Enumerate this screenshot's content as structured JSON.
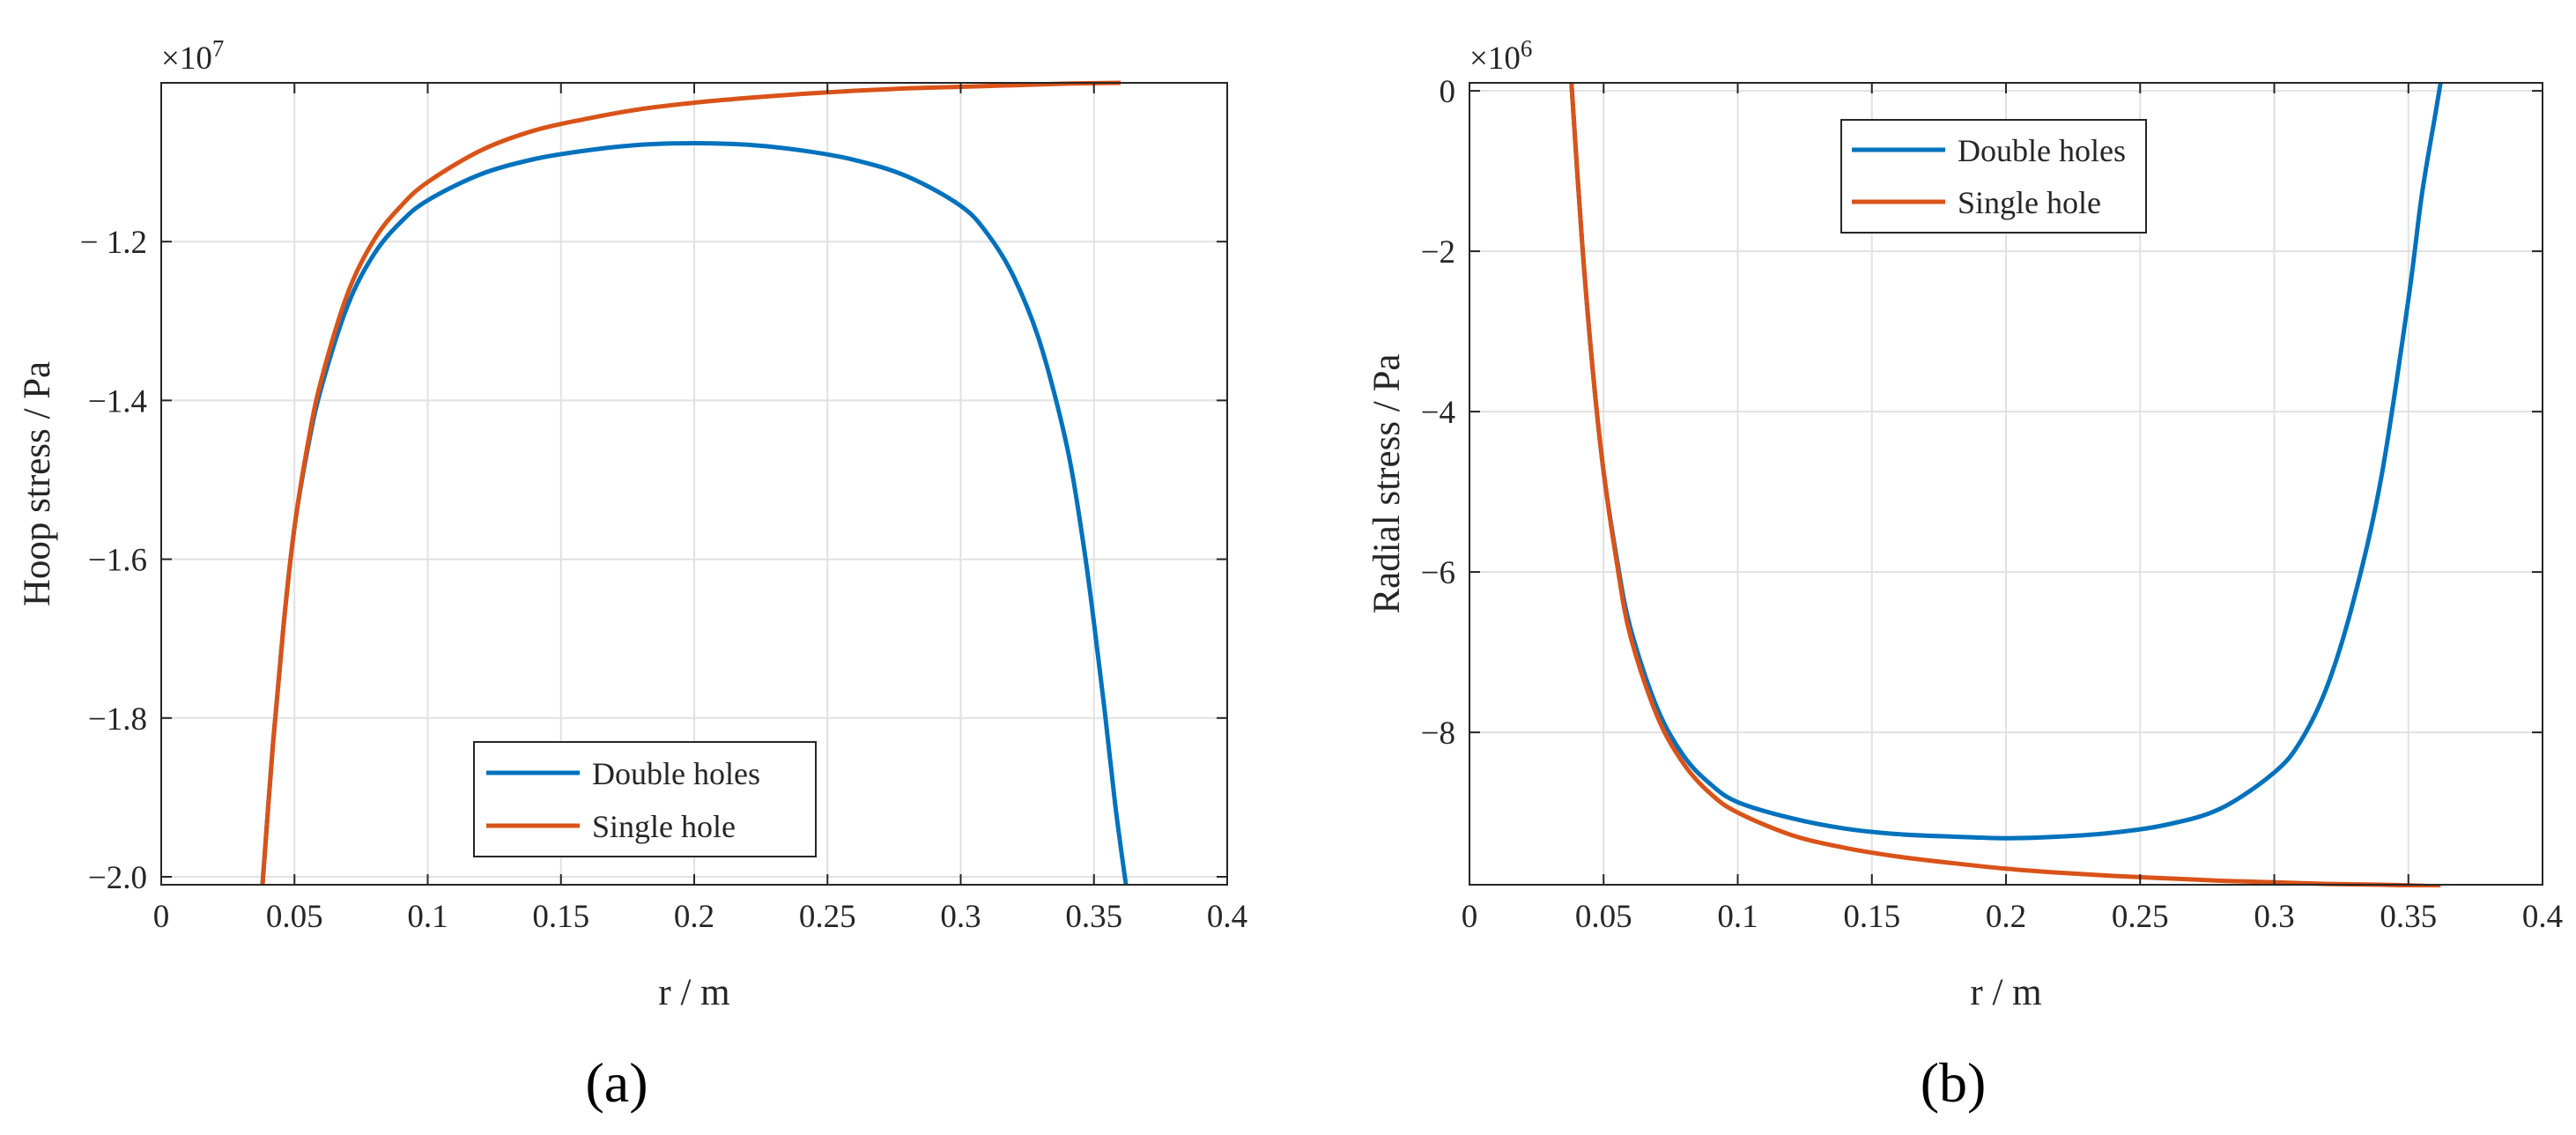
{
  "chart_data": [
    {
      "id": "a",
      "type": "line",
      "panel_label": "(a)",
      "xlabel": "r / m",
      "ylabel": "Hoop stress / Pa",
      "y_exponent_label": "×10",
      "y_exponent_power": "7",
      "xlim": [
        0,
        0.4
      ],
      "ylim": [
        -2.01,
        -1.0
      ],
      "x_ticks": [
        0,
        0.05,
        0.1,
        0.15,
        0.2,
        0.25,
        0.3,
        0.35,
        0.4
      ],
      "x_tick_labels": [
        "0",
        "0.05",
        "0.1",
        "0.15",
        "0.2",
        "0.25",
        "0.3",
        "0.35",
        "0.4"
      ],
      "y_ticks": [
        -2.0,
        -1.8,
        -1.6,
        -1.4,
        -1.2
      ],
      "y_tick_labels": [
        "−2.0",
        "−1.8",
        "−1.6",
        "−1.4",
        "− 1.2"
      ],
      "grid": true,
      "legend_position": "bottom-center",
      "series": [
        {
          "name": "Double holes",
          "color": "#0072BD",
          "x": [
            0.038,
            0.042,
            0.046,
            0.05,
            0.055,
            0.06,
            0.07,
            0.08,
            0.09,
            0.1,
            0.12,
            0.14,
            0.16,
            0.18,
            0.2,
            0.22,
            0.24,
            0.26,
            0.28,
            0.3,
            0.31,
            0.32,
            0.33,
            0.34,
            0.346,
            0.35,
            0.354,
            0.358,
            0.362
          ],
          "values": [
            -2.01,
            -1.83,
            -1.68,
            -1.56,
            -1.46,
            -1.385,
            -1.28,
            -1.215,
            -1.175,
            -1.148,
            -1.115,
            -1.096,
            -1.085,
            -1.078,
            -1.076,
            -1.078,
            -1.085,
            -1.097,
            -1.118,
            -1.155,
            -1.19,
            -1.245,
            -1.33,
            -1.46,
            -1.58,
            -1.68,
            -1.79,
            -1.91,
            -2.01
          ]
        },
        {
          "name": "Single hole",
          "color": "#D95319",
          "x": [
            0.038,
            0.042,
            0.046,
            0.05,
            0.055,
            0.06,
            0.07,
            0.08,
            0.09,
            0.1,
            0.12,
            0.14,
            0.16,
            0.18,
            0.2,
            0.22,
            0.24,
            0.26,
            0.28,
            0.3,
            0.32,
            0.34,
            0.36
          ],
          "values": [
            -2.01,
            -1.83,
            -1.68,
            -1.56,
            -1.455,
            -1.375,
            -1.265,
            -1.197,
            -1.155,
            -1.125,
            -1.085,
            -1.06,
            -1.045,
            -1.033,
            -1.025,
            -1.019,
            -1.014,
            -1.01,
            -1.007,
            -1.005,
            -1.003,
            -1.001,
            -1.0
          ]
        }
      ]
    },
    {
      "id": "b",
      "type": "line",
      "panel_label": "(b)",
      "xlabel": "r / m",
      "ylabel": "Radial stress / Pa",
      "y_exponent_label": "×10",
      "y_exponent_power": "6",
      "xlim": [
        0,
        0.4
      ],
      "ylim": [
        -9.9,
        0.1
      ],
      "x_ticks": [
        0,
        0.05,
        0.1,
        0.15,
        0.2,
        0.25,
        0.3,
        0.35,
        0.4
      ],
      "x_tick_labels": [
        "0",
        "0.05",
        "0.1",
        "0.15",
        "0.2",
        "0.25",
        "0.3",
        "0.35",
        "0.4"
      ],
      "y_ticks": [
        -8,
        -6,
        -4,
        -2,
        0
      ],
      "y_tick_labels": [
        "−8",
        "−6",
        "−4",
        "−2",
        "0"
      ],
      "grid": true,
      "legend_position": "top-center",
      "series": [
        {
          "name": "Double holes",
          "color": "#0072BD",
          "x": [
            0.038,
            0.042,
            0.046,
            0.05,
            0.055,
            0.06,
            0.07,
            0.08,
            0.09,
            0.1,
            0.12,
            0.14,
            0.16,
            0.18,
            0.2,
            0.22,
            0.24,
            0.26,
            0.28,
            0.3,
            0.31,
            0.32,
            0.33,
            0.34,
            0.35,
            0.355,
            0.36,
            0.362
          ],
          "values": [
            0.1,
            -1.9,
            -3.5,
            -4.75,
            -5.85,
            -6.7,
            -7.7,
            -8.3,
            -8.65,
            -8.87,
            -9.07,
            -9.2,
            -9.27,
            -9.3,
            -9.32,
            -9.3,
            -9.25,
            -9.15,
            -8.95,
            -8.5,
            -8.1,
            -7.4,
            -6.3,
            -4.8,
            -2.6,
            -1.3,
            -0.3,
            0.1
          ]
        },
        {
          "name": "Single hole",
          "color": "#D95319",
          "x": [
            0.038,
            0.042,
            0.046,
            0.05,
            0.055,
            0.06,
            0.07,
            0.08,
            0.09,
            0.1,
            0.12,
            0.14,
            0.16,
            0.18,
            0.2,
            0.22,
            0.24,
            0.26,
            0.28,
            0.3,
            0.32,
            0.34,
            0.362
          ],
          "values": [
            0.1,
            -1.9,
            -3.5,
            -4.75,
            -5.9,
            -6.8,
            -7.8,
            -8.4,
            -8.77,
            -9.0,
            -9.28,
            -9.44,
            -9.55,
            -9.63,
            -9.7,
            -9.75,
            -9.79,
            -9.82,
            -9.85,
            -9.87,
            -9.89,
            -9.9,
            -9.92
          ]
        }
      ]
    }
  ]
}
